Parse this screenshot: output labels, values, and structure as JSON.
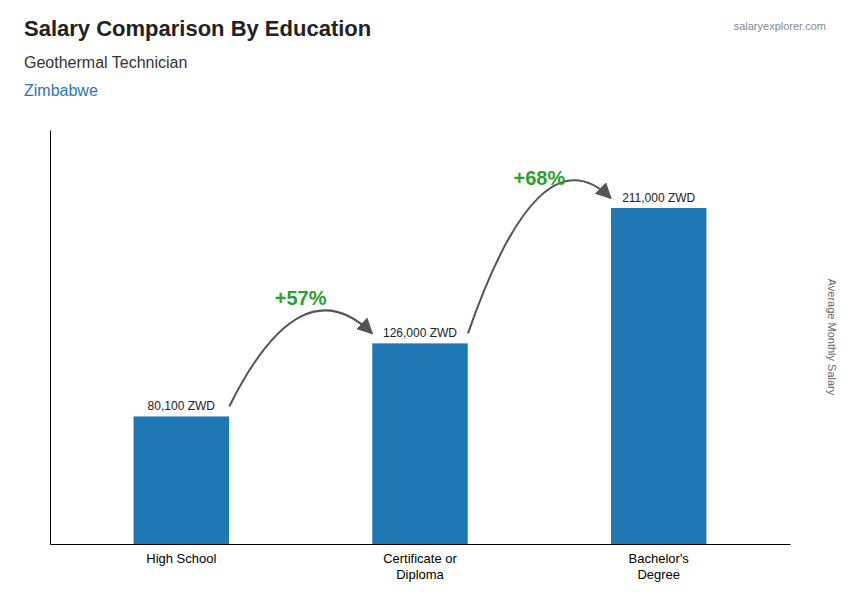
{
  "chart_data": {
    "type": "bar",
    "title": "Salary Comparison By Education",
    "subtitle": "Geothermal Technician",
    "ylabel": "Average Monthly Salary",
    "annotations": [
      "Zimbabwe",
      "salaryexplorer.com",
      "+57%",
      "+68%"
    ],
    "categories": [
      "High School",
      "Certificate or\nDiploma",
      "Bachelor's\nDegree"
    ],
    "values": [
      80100,
      126000,
      211000
    ],
    "value_labels": [
      "80,100 ZWD",
      "126,000 ZWD",
      "211,000 ZWD"
    ],
    "data_labels": true,
    "ylim": [
      0,
      260000
    ],
    "tick_labels": "x",
    "grid": false
  }
}
